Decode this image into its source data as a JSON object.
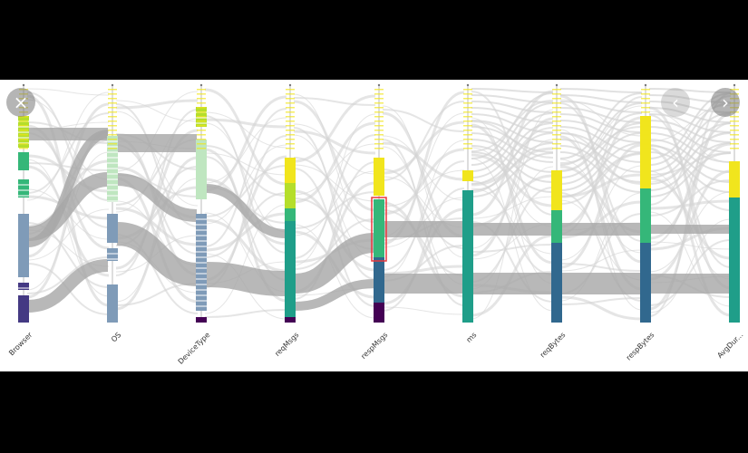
{
  "viewer": {
    "close_icon": "×",
    "prev_icon": "‹",
    "next_icon": "›"
  },
  "chart_data": {
    "type": "parallel-sets",
    "dimensions": [
      "Browser",
      "OS",
      "DeviceType",
      "reqMsgs",
      "respMsgs",
      "ms",
      "reqBytes",
      "respBytes",
      "AvgDur..."
    ],
    "highlighted_dimension": "respMsgs",
    "colors": {
      "link": "#d4d4d4",
      "link_strong": "#a6a6a6",
      "highlight_box": "#e8383d",
      "yellow": "#f1e51d",
      "lime": "#b5de2b",
      "green": "#35b779",
      "teal": "#1f9e89",
      "blue": "#31688e",
      "indigo": "#443983",
      "purple": "#440154",
      "steel": "#7f9bb8",
      "mint": "#bfe6c0"
    }
  }
}
